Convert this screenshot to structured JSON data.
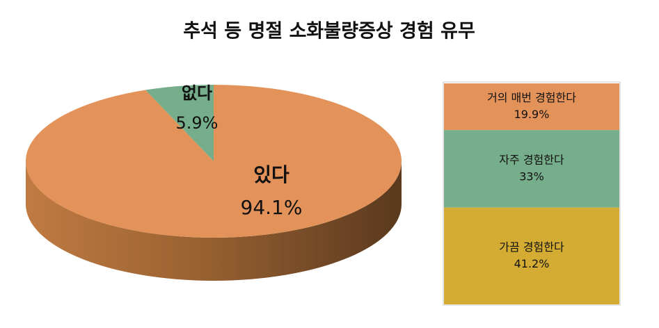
{
  "chart_data": [
    {
      "type": "pie3d",
      "title": "추석 등 명절 소화불량증상 경험 유무",
      "categories": [
        "있다",
        "없다"
      ],
      "values": [
        94.1,
        5.9
      ],
      "value_labels": [
        "94.1%",
        "5.9%"
      ],
      "colors": [
        "#e3925a",
        "#76ad8b"
      ]
    },
    {
      "type": "stacked_bar",
      "series": [
        {
          "name": "거의 매번 경험한다",
          "color": "#e3925a",
          "values": [
            19.9
          ],
          "value_labels": [
            "19.9%"
          ]
        },
        {
          "name": "자주 경험한다",
          "color": "#76ad8b",
          "values": [
            33
          ],
          "value_labels": [
            "33%"
          ]
        },
        {
          "name": "가끔 경험한다",
          "color": "#d4ac33",
          "values": [
            41.2
          ],
          "value_labels": [
            "41.2%"
          ]
        }
      ]
    }
  ]
}
